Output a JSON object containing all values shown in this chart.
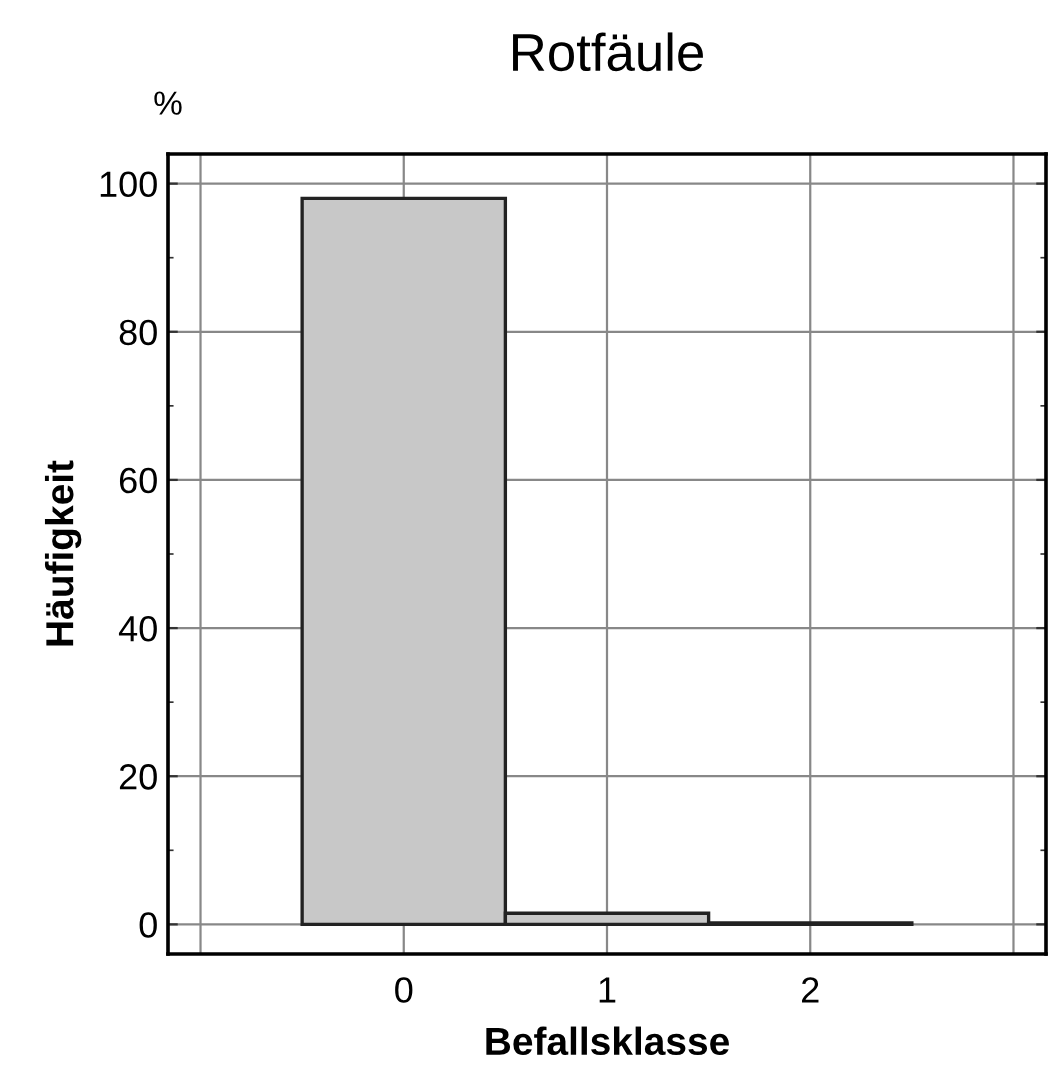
{
  "chart_data": {
    "type": "histogram",
    "title": "Rotfäule",
    "xlabel": "Befallsklasse",
    "ylabel": "Häufigkeit",
    "annotations": [
      "%"
    ],
    "bins": [
      -0.5,
      0.5,
      1.5,
      2.5
    ],
    "values": [
      98,
      1.5,
      0.2
    ],
    "color": "#c8c8c8",
    "xlim": [
      -1.16,
      3.16
    ],
    "xticks": [
      {
        "value": -1,
        "label": null
      },
      0,
      1,
      2,
      {
        "value": 3,
        "label": null
      }
    ],
    "ylim": [
      -4,
      104
    ],
    "yticks": [
      0,
      20,
      40,
      60,
      80,
      100
    ],
    "grid": true
  }
}
